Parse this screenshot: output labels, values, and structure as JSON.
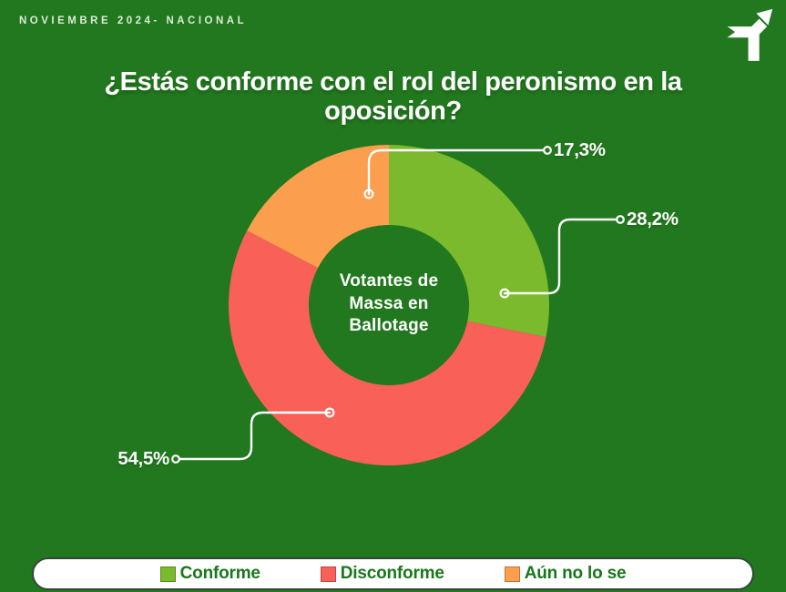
{
  "page": {
    "kicker": "NOVIEMBRE 2024- NACIONAL",
    "background_color": "#21781e"
  },
  "title": "¿Estás conforme con el rol del peronismo en la oposición?",
  "logo": "arrow-t-logo",
  "chart_data": {
    "type": "pie",
    "subtype": "donut",
    "title": "¿Estás conforme con el rol del peronismo en la oposición?",
    "center_label": "Votantes de Massa en Ballotage",
    "unit": "%",
    "direction": "clockwise",
    "start_angle": "12-oclock",
    "inner_radius_ratio": 0.5,
    "legend_position": "bottom",
    "series": [
      {
        "name": "Conforme",
        "value": 28.2,
        "label": "28,2%",
        "color": "#7aba2c"
      },
      {
        "name": "Disconforme",
        "value": 54.5,
        "label": "54,5%",
        "color": "#f96058"
      },
      {
        "name": "Aún no lo se",
        "value": 17.3,
        "label": "17,3%",
        "color": "#fb9e4d"
      }
    ]
  },
  "colors": {
    "leader_line": "#ffffff",
    "label_text": "#ffffff",
    "legend_text": "#17781a",
    "legend_bg": "#ffffff"
  }
}
